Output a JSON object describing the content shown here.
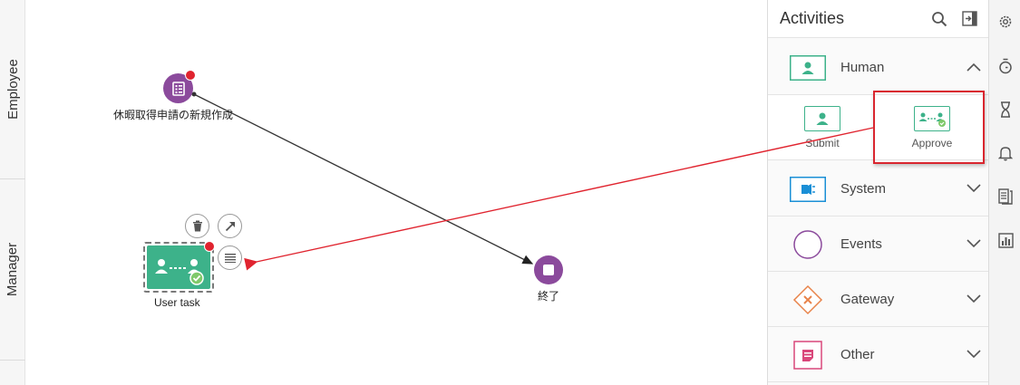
{
  "lanes": [
    {
      "label": "Employee"
    },
    {
      "label": "Manager"
    }
  ],
  "canvas": {
    "start_node": {
      "label": "休暇取得申請の新規作成",
      "icon": "form-list-icon",
      "has_error": true
    },
    "end_node": {
      "label": "終了",
      "icon": "stop-icon"
    },
    "user_task": {
      "label": "User task",
      "icon": "approve-people-icon",
      "has_error": true,
      "selected": true
    },
    "task_actions": [
      {
        "name": "delete",
        "icon": "trash-icon"
      },
      {
        "name": "connect",
        "icon": "arrow-up-right-icon"
      },
      {
        "name": "properties",
        "icon": "list-icon"
      }
    ]
  },
  "panel": {
    "title": "Activities",
    "header_icons": [
      "search-icon",
      "collapse-panel-icon"
    ],
    "sections": [
      {
        "label": "Human",
        "icon": "person-icon",
        "color": "#3db28a",
        "expanded": true,
        "items": [
          {
            "label": "Submit",
            "icon": "person-icon"
          },
          {
            "label": "Approve",
            "icon": "approve-people-icon",
            "highlighted": true
          }
        ]
      },
      {
        "label": "System",
        "icon": "plug-icon",
        "color": "#1a8fd6",
        "expanded": false
      },
      {
        "label": "Events",
        "icon": "circle-icon",
        "color": "#8b4a9c",
        "expanded": false
      },
      {
        "label": "Gateway",
        "icon": "diamond-x-icon",
        "color": "#e8834a",
        "expanded": false
      },
      {
        "label": "Other",
        "icon": "note-icon",
        "color": "#d9477a",
        "expanded": false
      }
    ]
  },
  "toolbar": [
    "gear-icon",
    "stopwatch-icon",
    "hourglass-icon",
    "bell-icon",
    "documents-icon",
    "chart-icon"
  ],
  "colors": {
    "accent_green": "#3db28a",
    "node_purple": "#8b4a9c",
    "error_red": "#e0242f",
    "drag_arrow": "#e0242f"
  }
}
